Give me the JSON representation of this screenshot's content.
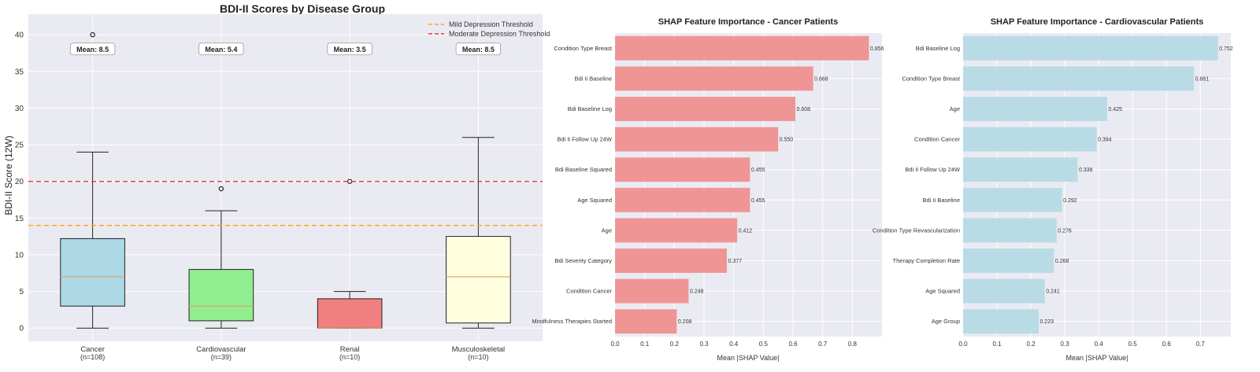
{
  "chart_data": [
    {
      "type": "box",
      "title": "BDI-II Scores by Disease Group",
      "xlabel": "",
      "ylabel": "BDI-II Score (12W)",
      "ylim": [
        -1.8,
        42.8
      ],
      "yticks": [
        0,
        5,
        10,
        15,
        20,
        25,
        30,
        35,
        40
      ],
      "grid": true,
      "legend_position": "top-right",
      "categories": [
        "Cancer",
        "Cardiovascular",
        "Renal",
        "Musculoskeletal"
      ],
      "counts": [
        "(n=108)",
        "(n=39)",
        "(n=10)",
        "(n=10)"
      ],
      "colors": [
        "#add8e6",
        "#90ee90",
        "#f08080",
        "#ffffe0"
      ],
      "boxes": [
        {
          "whisker_low": 0,
          "q1": 3,
          "median": 7,
          "q3": 12.2,
          "whisker_high": 24,
          "outliers": [
            40
          ],
          "mean_label": "Mean: 8.5"
        },
        {
          "whisker_low": 0,
          "q1": 1,
          "median": 3,
          "q3": 8,
          "whisker_high": 16,
          "outliers": [
            19
          ],
          "mean_label": "Mean: 5.4"
        },
        {
          "whisker_low": 0,
          "q1": 0,
          "median": 0,
          "q3": 4,
          "whisker_high": 5,
          "outliers": [
            20
          ],
          "mean_label": "Mean: 3.5"
        },
        {
          "whisker_low": 0,
          "q1": 0.7,
          "median": 7,
          "q3": 12.5,
          "whisker_high": 26,
          "outliers": [],
          "mean_label": "Mean: 8.5"
        }
      ],
      "mean_label_y": 38,
      "thresholds": [
        {
          "name": "Mild Depression Threshold",
          "value": 14,
          "color": "#ffa726"
        },
        {
          "name": "Moderate Depression Threshold",
          "value": 20,
          "color": "#e53935"
        }
      ]
    },
    {
      "type": "bar",
      "orientation": "horizontal",
      "title": "SHAP Feature Importance - Cancer Patients",
      "xlabel": "Mean |SHAP Value|",
      "ylabel": "",
      "xlim": [
        0,
        0.9
      ],
      "xticks": [
        0.0,
        0.1,
        0.2,
        0.3,
        0.4,
        0.5,
        0.6,
        0.7,
        0.8
      ],
      "color": "#f09595",
      "grid": true,
      "categories": [
        "Condition Type Breast",
        "Bdi Ii Baseline",
        "Bdi Baseline Log",
        "Bdi Ii Follow Up 24W",
        "Bdi Baseline Squared",
        "Age Squared",
        "Age",
        "Bdi Severity Category",
        "Condition Cancer",
        "Mindfulness Therapies Started"
      ],
      "values": [
        0.856,
        0.668,
        0.608,
        0.55,
        0.455,
        0.455,
        0.412,
        0.377,
        0.248,
        0.208
      ],
      "value_labels": [
        "0.856",
        "0.668",
        "0.608",
        "0.550",
        "0.455",
        "0.455",
        "0.412",
        "0.377",
        "0.248",
        "0.208"
      ]
    },
    {
      "type": "bar",
      "orientation": "horizontal",
      "title": "SHAP Feature Importance - Cardiovascular Patients",
      "xlabel": "Mean |SHAP Value|",
      "ylabel": "",
      "xlim": [
        0,
        0.79
      ],
      "xticks": [
        0.0,
        0.1,
        0.2,
        0.3,
        0.4,
        0.5,
        0.6,
        0.7
      ],
      "color": "#b9dbe6",
      "grid": true,
      "categories": [
        "Bdi Baseline Log",
        "Condition Type Breast",
        "Age",
        "Condition Cancer",
        "Bdi Ii Follow Up 24W",
        "Bdi Ii Baseline",
        "Condition Type Revascularization",
        "Therapy Completion Rate",
        "Age Squared",
        "Age Group"
      ],
      "values": [
        0.752,
        0.681,
        0.425,
        0.394,
        0.338,
        0.292,
        0.276,
        0.268,
        0.241,
        0.223
      ],
      "value_labels": [
        "0.752",
        "0.681",
        "0.425",
        "0.394",
        "0.338",
        "0.292",
        "0.276",
        "0.268",
        "0.241",
        "0.223"
      ]
    }
  ]
}
